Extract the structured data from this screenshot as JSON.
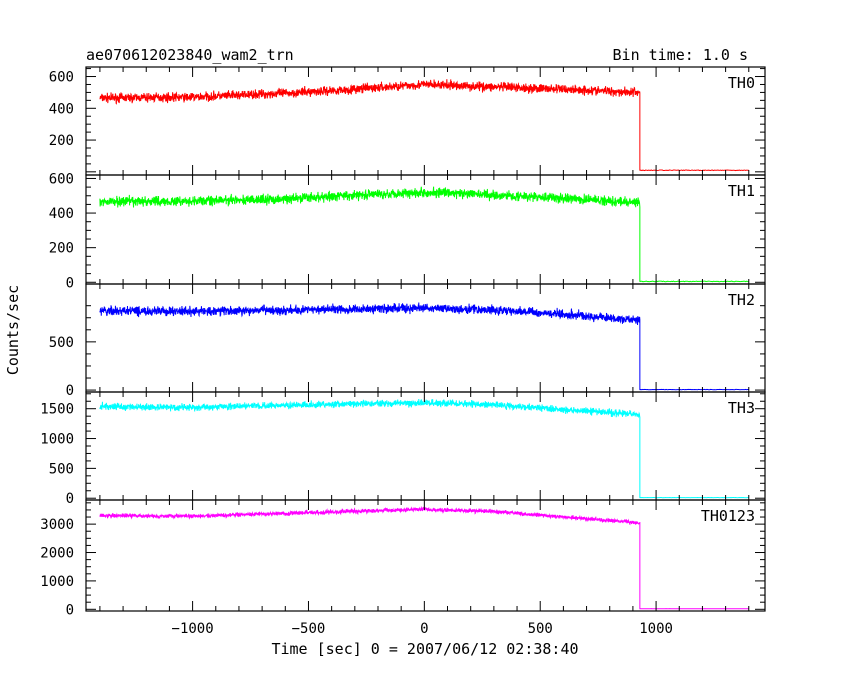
{
  "chart_data": {
    "type": "line",
    "title": "ae070612023840_wam2_trn",
    "subtitle": "Bin time: 1.0 s",
    "xlabel": "Time [sec] 0 = 2007/06/12 02:38:40",
    "ylabel": "Counts/sec",
    "xlim": [
      -1460,
      1470
    ],
    "x_ticks": [
      -1000,
      -500,
      0,
      500,
      1000
    ],
    "x_tick_labels": [
      "−1000",
      "−500",
      "0",
      "500",
      "1000"
    ],
    "step_time": 930,
    "noise_seed": 7,
    "panels": [
      {
        "name": "TH0",
        "color": "#ff0000",
        "ylim": [
          -20,
          660
        ],
        "yticks": [
          0,
          200,
          400,
          600
        ],
        "ytick_labels": [
          "",
          "200",
          "400",
          "600"
        ],
        "noise": 28,
        "post_level": 10,
        "trend": [
          [
            -1400,
            465
          ],
          [
            -1000,
            470
          ],
          [
            -600,
            495
          ],
          [
            -300,
            520
          ],
          [
            0,
            550
          ],
          [
            300,
            535
          ],
          [
            600,
            520
          ],
          [
            930,
            500
          ]
        ]
      },
      {
        "name": "TH1",
        "color": "#00ff00",
        "ylim": [
          -10,
          620
        ],
        "yticks": [
          0,
          200,
          400,
          600
        ],
        "ytick_labels": [
          "0",
          "200",
          "400",
          "600"
        ],
        "noise": 28,
        "post_level": 5,
        "trend": [
          [
            -1400,
            465
          ],
          [
            -1000,
            470
          ],
          [
            -600,
            480
          ],
          [
            -300,
            505
          ],
          [
            0,
            520
          ],
          [
            300,
            505
          ],
          [
            600,
            485
          ],
          [
            930,
            460
          ]
        ]
      },
      {
        "name": "TH2",
        "color": "#0000ff",
        "ylim": [
          -20,
          1100
        ],
        "yticks": [
          0,
          500
        ],
        "ytick_labels": [
          "0",
          "500"
        ],
        "noise": 45,
        "post_level": 5,
        "trend": [
          [
            -1400,
            820
          ],
          [
            -1000,
            815
          ],
          [
            -600,
            830
          ],
          [
            -300,
            840
          ],
          [
            0,
            850
          ],
          [
            300,
            830
          ],
          [
            600,
            790
          ],
          [
            930,
            720
          ]
        ]
      },
      {
        "name": "TH3",
        "color": "#00ffff",
        "ylim": [
          -30,
          1780
        ],
        "yticks": [
          0,
          500,
          1000,
          1500
        ],
        "ytick_labels": [
          "0",
          "500",
          "1000",
          "1500"
        ],
        "noise": 55,
        "post_level": 10,
        "trend": [
          [
            -1400,
            1540
          ],
          [
            -1000,
            1520
          ],
          [
            -600,
            1560
          ],
          [
            -300,
            1580
          ],
          [
            0,
            1600
          ],
          [
            300,
            1570
          ],
          [
            600,
            1480
          ],
          [
            930,
            1410
          ]
        ]
      },
      {
        "name": "TH0123",
        "color": "#ff00ff",
        "ylim": [
          -60,
          3850
        ],
        "yticks": [
          0,
          1000,
          2000,
          3000
        ],
        "ytick_labels": [
          "0",
          "1000",
          "2000",
          "3000"
        ],
        "noise": 70,
        "post_level": 20,
        "trend": [
          [
            -1400,
            3300
          ],
          [
            -1000,
            3280
          ],
          [
            -600,
            3380
          ],
          [
            -300,
            3460
          ],
          [
            0,
            3520
          ],
          [
            300,
            3450
          ],
          [
            600,
            3250
          ],
          [
            930,
            3050
          ]
        ]
      }
    ]
  }
}
